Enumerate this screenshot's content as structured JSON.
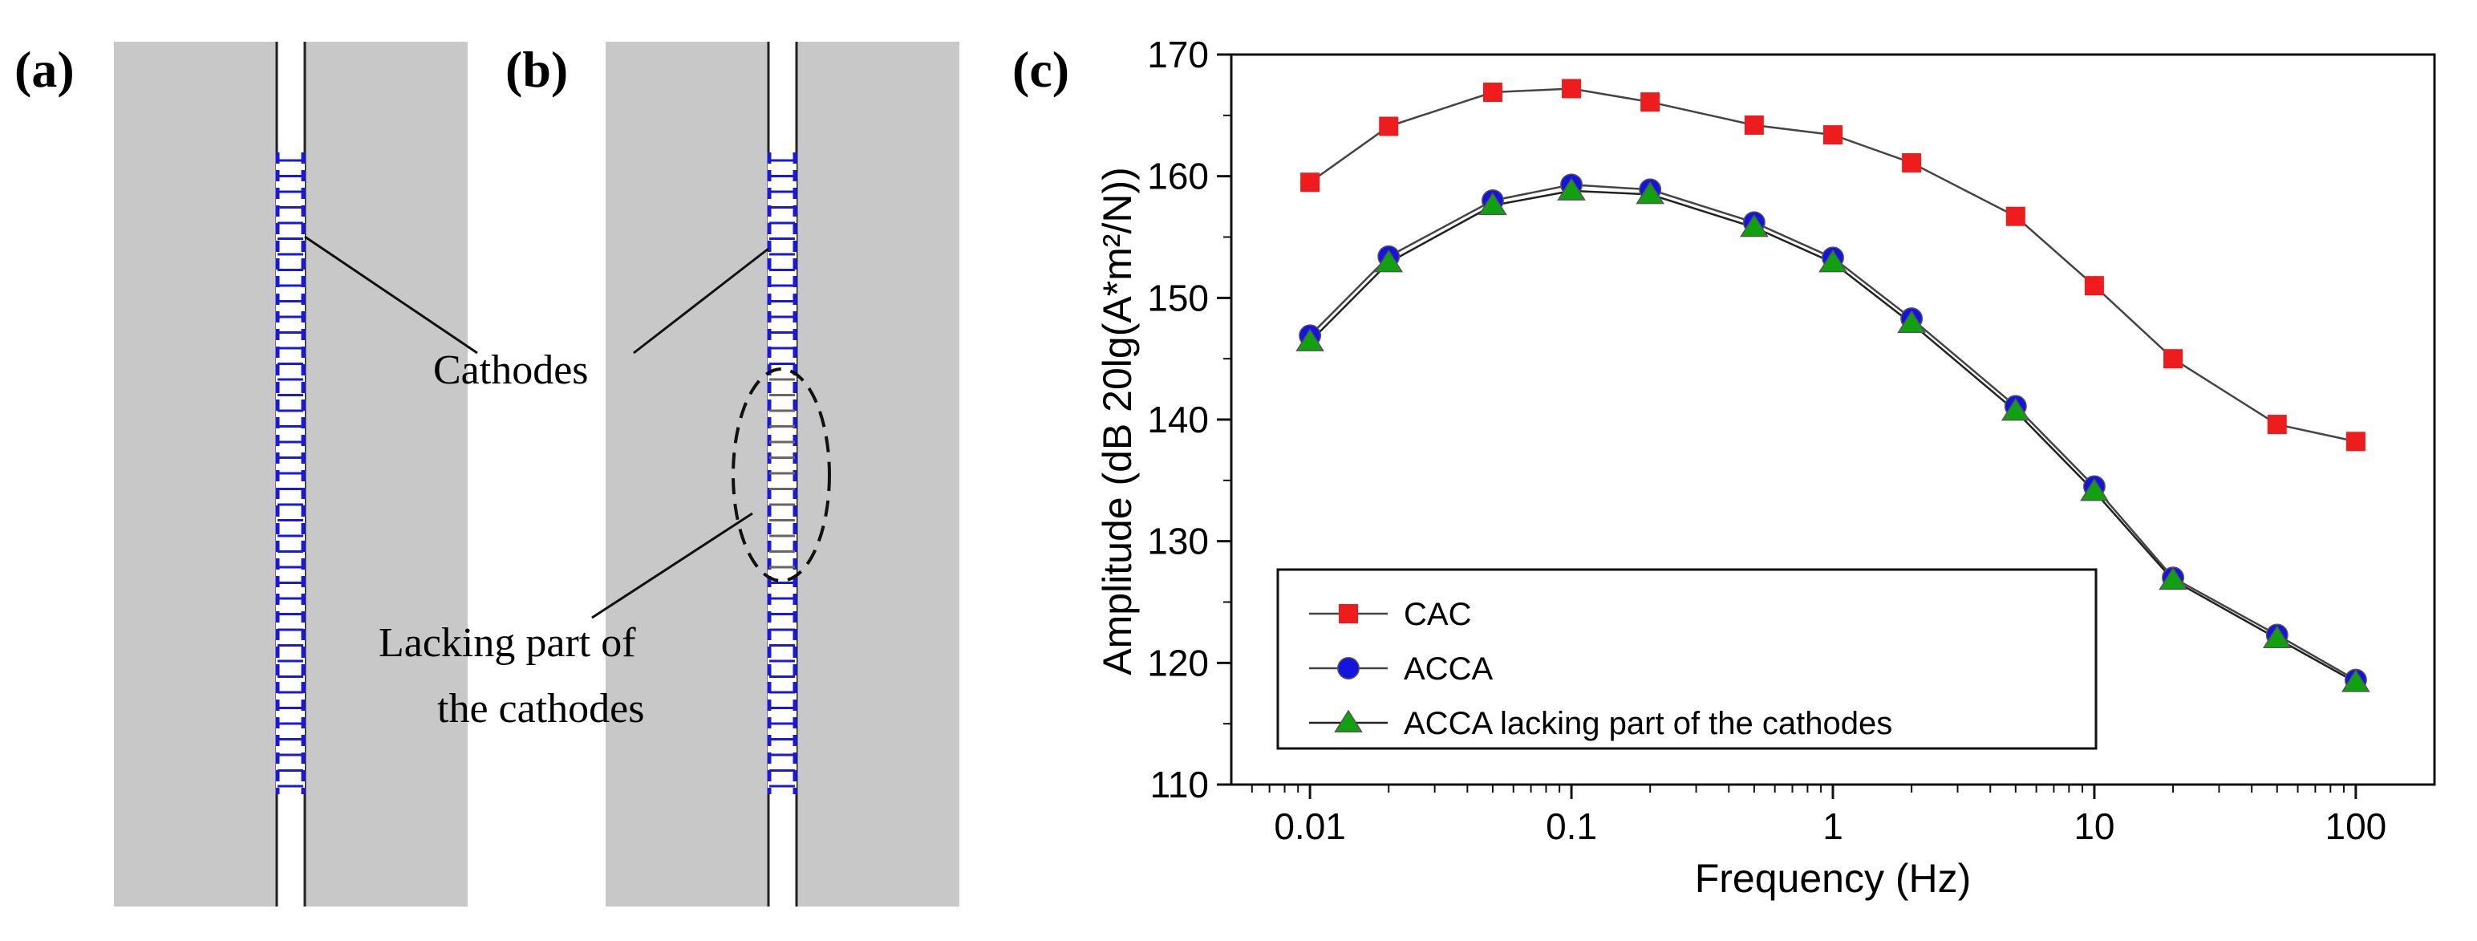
{
  "panels": {
    "a": {
      "label": "(a)"
    },
    "b": {
      "label": "(b)"
    },
    "c": {
      "label": "(c)"
    }
  },
  "annotations": {
    "cathodes_label": "Cathodes",
    "lacking_line1": "Lacking part of",
    "lacking_line2": "the cathodes"
  },
  "colors": {
    "block_fill": "#c8c8c8",
    "electrode_blue": "#1a1ad6",
    "cac_red": "#ee1c1c",
    "acca_blue": "#1414e0",
    "acca_lacking_green": "#10a010",
    "line_gray": "#333333"
  },
  "chart_data": {
    "type": "line",
    "xscale": "log",
    "xlabel": "Frequency  (Hz)",
    "ylabel": "Amplitude  (dB  20lg(A*m²/N))",
    "x_ticks": [
      0.01,
      0.1,
      1,
      10,
      100
    ],
    "x_tick_labels": [
      "0.01",
      "0.1",
      "1",
      "10",
      "100"
    ],
    "xlim": [
      0.005,
      200
    ],
    "y_ticks": [
      110,
      120,
      130,
      140,
      150,
      160,
      170
    ],
    "y_tick_labels": [
      "110",
      "120",
      "130",
      "140",
      "150",
      "160",
      "170"
    ],
    "ylim": [
      110,
      170
    ],
    "legend_position": "bottom-left",
    "series": [
      {
        "name": "CAC",
        "marker": "square",
        "x": [
          0.01,
          0.02,
          0.05,
          0.1,
          0.2,
          0.5,
          1,
          2,
          5,
          10,
          20,
          50,
          100
        ],
        "values": [
          159.5,
          164.1,
          166.9,
          167.2,
          166.1,
          164.2,
          163.4,
          161.1,
          156.7,
          151.0,
          145.0,
          139.6,
          138.2
        ]
      },
      {
        "name": "ACCA",
        "marker": "circle",
        "x": [
          0.01,
          0.02,
          0.05,
          0.1,
          0.2,
          0.5,
          1,
          2,
          5,
          10,
          20,
          50,
          100
        ],
        "values": [
          146.9,
          153.4,
          158.0,
          159.3,
          158.9,
          156.2,
          153.3,
          148.3,
          141.1,
          134.5,
          127.0,
          122.3,
          118.6
        ]
      },
      {
        "name": "ACCA lacking part of the cathodes",
        "marker": "triangle",
        "x": [
          0.01,
          0.02,
          0.05,
          0.1,
          0.2,
          0.5,
          1,
          2,
          5,
          10,
          20,
          50,
          100
        ],
        "values": [
          146.4,
          152.9,
          157.6,
          158.8,
          158.5,
          155.8,
          152.9,
          147.9,
          140.7,
          134.1,
          126.8,
          122.0,
          118.4
        ]
      }
    ]
  }
}
